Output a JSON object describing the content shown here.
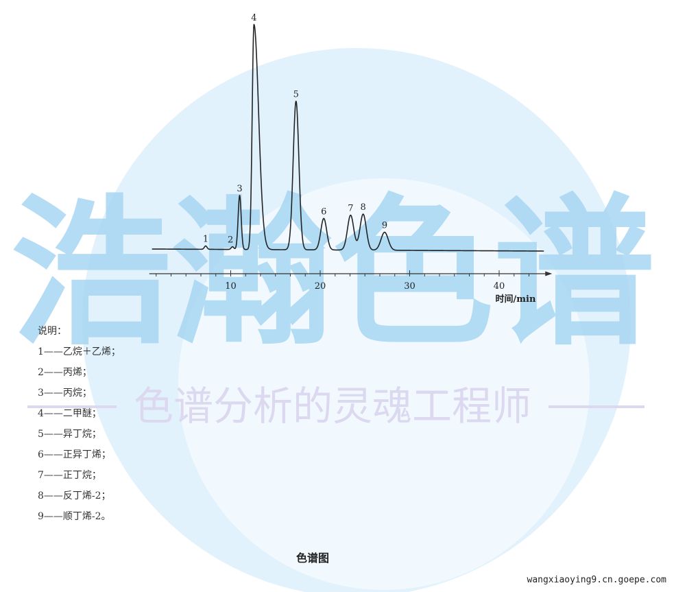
{
  "watermark": {
    "brand": "浩瀚色谱",
    "slogan": "色谱分析的灵魂工程师",
    "color_main": "#a8d6f3",
    "color_circle": "#e2f2fc",
    "color_slogan": "#dcd8f0"
  },
  "chart_data": {
    "type": "line",
    "title": "",
    "xlabel": "时间/min",
    "ylabel": "",
    "xlim": [
      1,
      45
    ],
    "xticks": [
      10,
      20,
      30,
      40
    ],
    "minor_tick_step": 1.6667,
    "y_units": "relative response (unscaled, no axis)",
    "grid": false,
    "line_color": "#222222",
    "peaks": [
      {
        "label": "1",
        "time": 7.2,
        "height": 1.5,
        "width_min": 0.15
      },
      {
        "label": "2",
        "time": 10.2,
        "height": 1.2,
        "width_min": 0.15
      },
      {
        "label": "3",
        "time": 11.0,
        "height": 24,
        "width_min": 0.17
      },
      {
        "label": "4",
        "time": 12.6,
        "height": 100,
        "width_min": 0.2,
        "tailing": true
      },
      {
        "label": "5",
        "time": 17.3,
        "height": 66,
        "width_min": 0.32
      },
      {
        "label": "6",
        "time": 20.4,
        "height": 14,
        "width_min": 0.33
      },
      {
        "label": "7",
        "time": 23.4,
        "height": 15.5,
        "width_min": 0.35
      },
      {
        "label": "8",
        "time": 24.8,
        "height": 16,
        "width_min": 0.35
      },
      {
        "label": "9",
        "time": 27.2,
        "height": 8,
        "width_min": 0.4
      }
    ]
  },
  "legend": {
    "heading": "说明：",
    "items": [
      "1——乙烷＋乙烯；",
      "2——丙烯；",
      "3——丙烷；",
      "4——二甲醚；",
      "5——异丁烷；",
      "6——正异丁烯；",
      "7——正丁烷；",
      "8——反丁烯-2；",
      "9——顺丁烯-2。"
    ]
  },
  "caption": "色谱图",
  "footer": "wangxiaoying9.cn.goepe.com"
}
